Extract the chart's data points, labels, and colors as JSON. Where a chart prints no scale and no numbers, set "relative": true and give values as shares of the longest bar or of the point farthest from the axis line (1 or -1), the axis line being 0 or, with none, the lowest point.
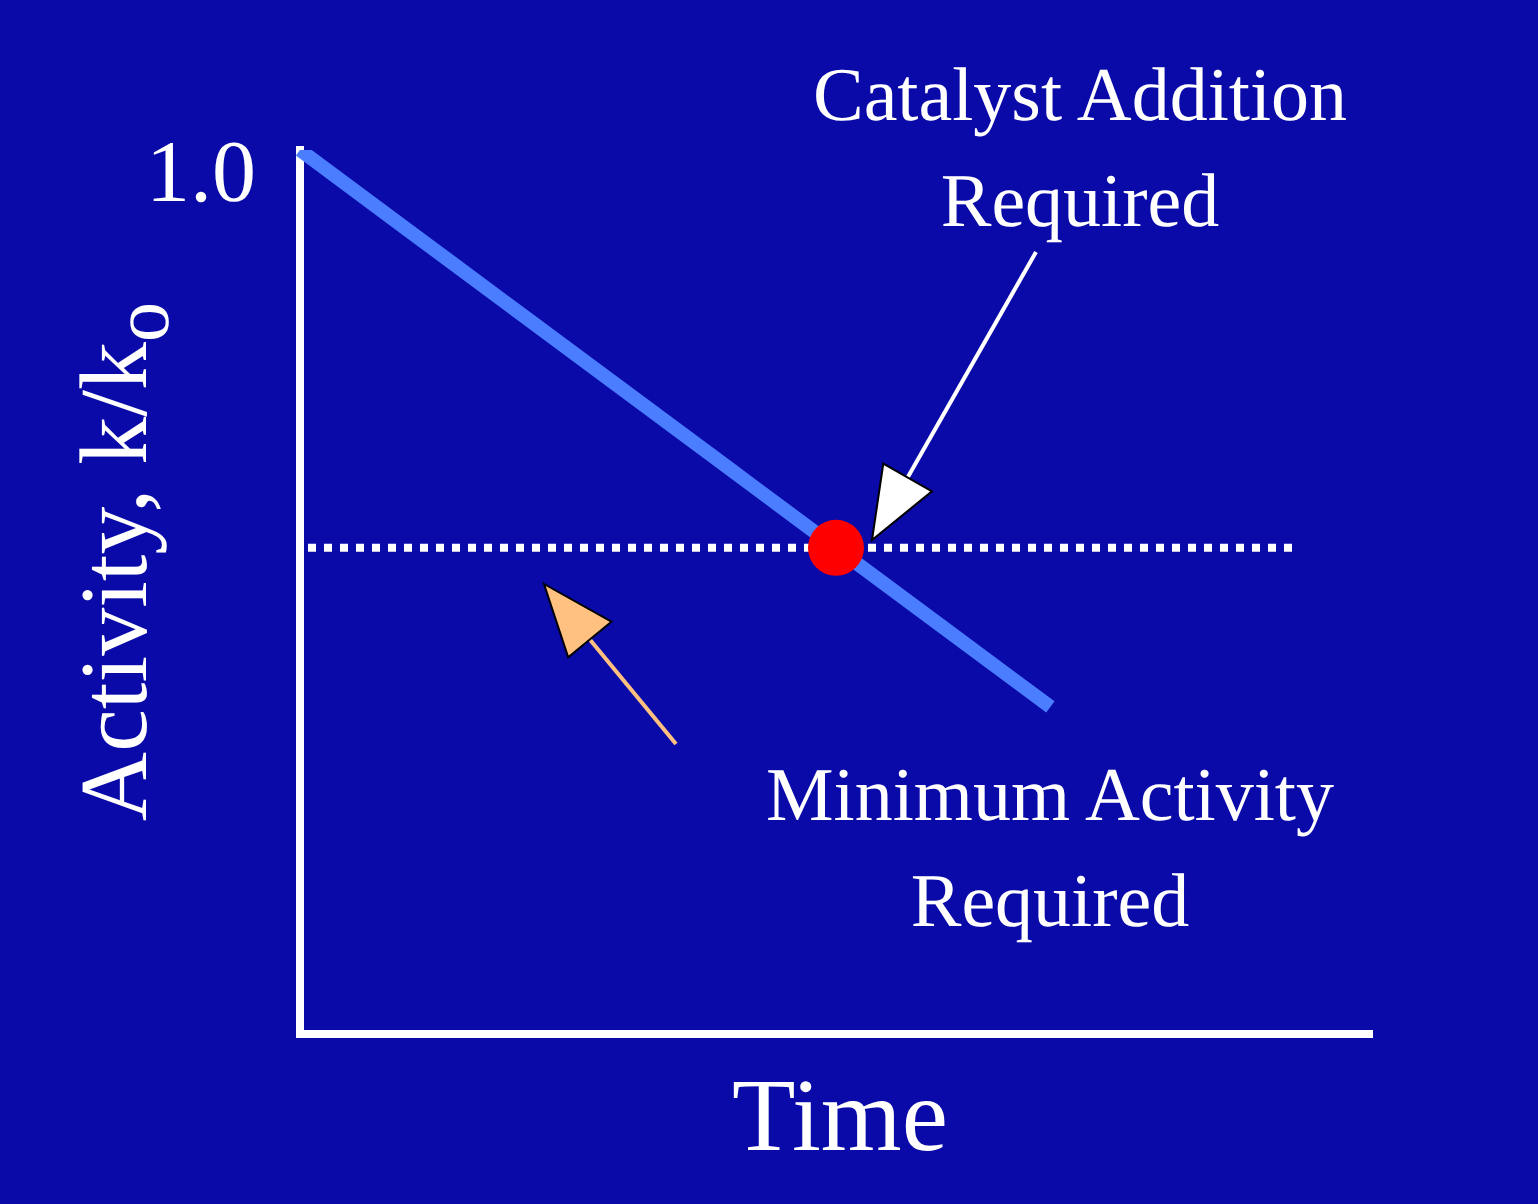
{
  "chart_data": {
    "type": "line",
    "relative": true,
    "xlabel": "Time",
    "ylabel": "Activity, k/k$_{o}$",
    "categories": [
      null,
      null,
      null,
      null,
      null,
      null,
      null,
      null,
      null,
      null,
      null
    ],
    "series": [
      {
        "color": "#4a7dff",
        "values": [
          1,
          0.91,
          0.82,
          0.73,
          0.64,
          0.55,
          0.46,
          0.37,
          null,
          null,
          null
        ]
      }
    ],
    "ref_lines": [
      {
        "axis": "y",
        "value": 0.55,
        "label": "Minimum Activity\nRequired",
        "color": "#ffffff",
        "line_style": "dotted"
      }
    ],
    "annotations": [
      "1.0",
      "Catalyst Addition\nRequired"
    ],
    "grid": false,
    "legend": false,
    "line_style": "solid"
  }
}
